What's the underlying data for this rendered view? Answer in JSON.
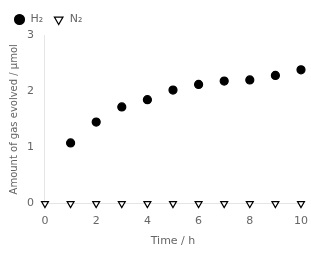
{
  "chart_data": {
    "type": "scatter",
    "xlabel": "Time / h",
    "ylabel": "Amount of gas evolved / μmol",
    "series": [
      {
        "name": "H₂",
        "color": "black",
        "marker": "circle",
        "x": [
          1,
          2,
          3,
          4,
          5,
          6,
          7,
          8,
          9,
          10
        ],
        "values": [
          1.08,
          1.45,
          1.72,
          1.85,
          2.02,
          2.12,
          2.18,
          2.2,
          2.28,
          2.38
        ]
      },
      {
        "name": "N₂",
        "color": "black",
        "marker": "triangle_down_open",
        "x": [
          0,
          1,
          2,
          3,
          4,
          5,
          6,
          7,
          8,
          9,
          10
        ],
        "values": [
          0,
          0,
          0,
          0,
          0,
          0,
          0,
          0,
          0,
          0,
          0
        ]
      }
    ],
    "xlim": [
      0,
      10
    ],
    "ylim": [
      0,
      3
    ],
    "xticks": [
      0,
      2,
      4,
      6,
      8,
      10
    ],
    "yticks": [
      0,
      1,
      2,
      3
    ],
    "grid": false,
    "legend": "upper left"
  }
}
